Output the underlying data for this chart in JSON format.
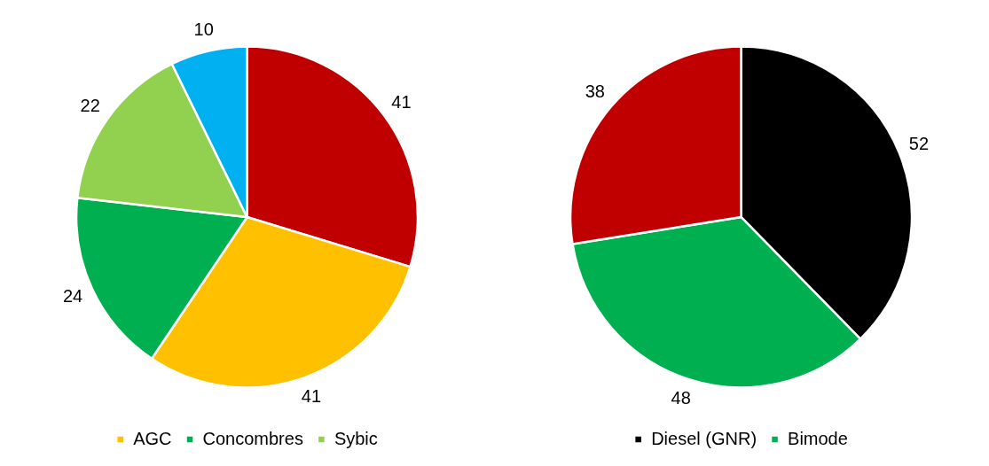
{
  "chart_data": [
    {
      "type": "pie",
      "categories": [
        null,
        "AGC",
        "Concombres",
        "Sybic",
        null
      ],
      "values": [
        41,
        41,
        24,
        22,
        10
      ],
      "colors": [
        "#c00000",
        "#ffc000",
        "#00b050",
        "#92d050",
        "#00b0f0"
      ],
      "data_labels": true,
      "legend": "bottom"
    },
    {
      "type": "pie",
      "categories": [
        "Diesel (GNR)",
        "Bimode",
        null
      ],
      "values": [
        52,
        48,
        38
      ],
      "colors": [
        "#000000",
        "#00b050",
        "#c00000"
      ],
      "data_labels": true,
      "legend": "bottom"
    }
  ]
}
